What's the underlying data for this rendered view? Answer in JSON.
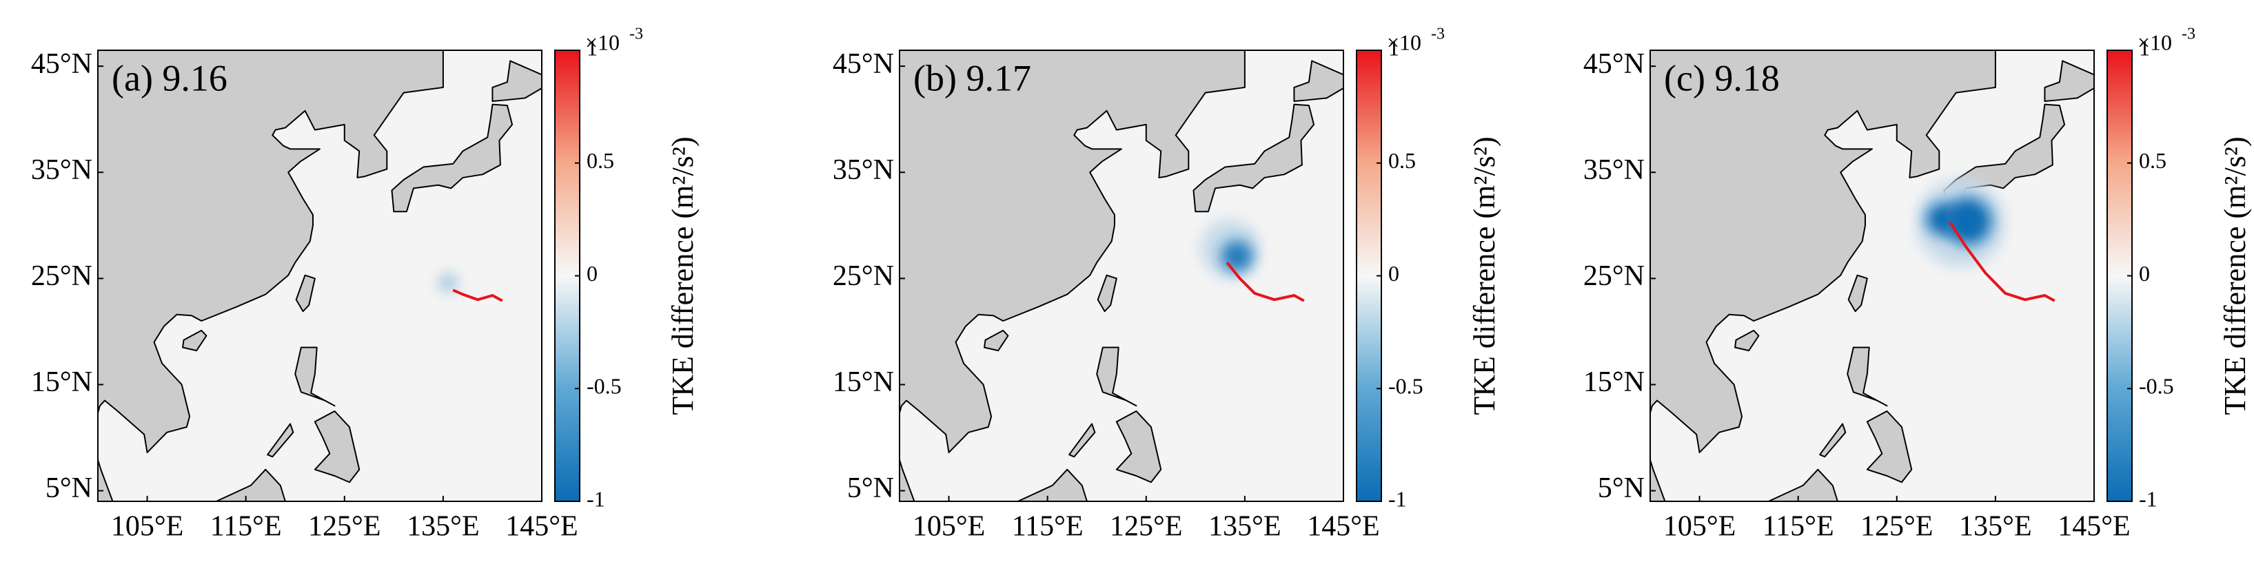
{
  "chart_data": [
    {
      "type": "map",
      "title": "(a) 9.16",
      "xlim": [
        100,
        145
      ],
      "ylim": [
        4,
        46.5
      ],
      "xticks": [
        {
          "value": 105,
          "label": "105°E"
        },
        {
          "value": 115,
          "label": "115°E"
        },
        {
          "value": 125,
          "label": "125°E"
        },
        {
          "value": 135,
          "label": "135°E"
        },
        {
          "value": 145,
          "label": "145°E"
        }
      ],
      "yticks": [
        {
          "value": 5,
          "label": "5°N"
        },
        {
          "value": 15,
          "label": "15°N"
        },
        {
          "value": 25,
          "label": "25°N"
        },
        {
          "value": 35,
          "label": "35°N"
        },
        {
          "value": 45,
          "label": "45°N"
        }
      ],
      "track": {
        "color": "#e8141c",
        "lon": [
          141,
          140,
          138.5,
          137,
          136
        ],
        "lat": [
          22.9,
          23.4,
          23.0,
          23.5,
          23.9
        ]
      },
      "anomalies": [
        {
          "lon": 135.5,
          "lat": 24.6,
          "radius": 0.9,
          "value": -0.4
        }
      ],
      "colorbar": {
        "label": "TKE difference (m²/s²)",
        "base": "×10",
        "exponent": "-3",
        "lim": [
          -1,
          1
        ],
        "ticks": [
          -1,
          -0.5,
          0,
          0.5,
          1
        ]
      }
    },
    {
      "type": "map",
      "title": "(b) 9.17",
      "xlim": [
        100,
        145
      ],
      "ylim": [
        4,
        46.5
      ],
      "xticks": [
        {
          "value": 105,
          "label": "105°E"
        },
        {
          "value": 115,
          "label": "115°E"
        },
        {
          "value": 125,
          "label": "125°E"
        },
        {
          "value": 135,
          "label": "135°E"
        },
        {
          "value": 145,
          "label": "145°E"
        }
      ],
      "yticks": [
        {
          "value": 5,
          "label": "5°N"
        },
        {
          "value": 15,
          "label": "15°N"
        },
        {
          "value": 25,
          "label": "25°N"
        },
        {
          "value": 35,
          "label": "35°N"
        },
        {
          "value": 45,
          "label": "45°N"
        }
      ],
      "track": {
        "color": "#e8141c",
        "lon": [
          141,
          140,
          138,
          136,
          134.5,
          133.2
        ],
        "lat": [
          22.9,
          23.4,
          23.0,
          23.6,
          25,
          26.5
        ]
      },
      "anomalies": [
        {
          "lon": 133.5,
          "lat": 27.8,
          "radius": 3,
          "value": -0.2
        },
        {
          "lon": 134.2,
          "lat": 27.1,
          "radius": 1.6,
          "value": -0.9
        }
      ],
      "colorbar": {
        "label": "TKE difference (m²/s²)",
        "base": "×10",
        "exponent": "-3",
        "lim": [
          -1,
          1
        ],
        "ticks": [
          -1,
          -0.5,
          0,
          0.5,
          1
        ]
      }
    },
    {
      "type": "map",
      "title": "(c) 9.18",
      "xlim": [
        100,
        145
      ],
      "ylim": [
        4,
        46.5
      ],
      "xticks": [
        {
          "value": 105,
          "label": "105°E"
        },
        {
          "value": 115,
          "label": "115°E"
        },
        {
          "value": 125,
          "label": "125°E"
        },
        {
          "value": 135,
          "label": "135°E"
        },
        {
          "value": 145,
          "label": "145°E"
        }
      ],
      "yticks": [
        {
          "value": 5,
          "label": "5°N"
        },
        {
          "value": 15,
          "label": "15°N"
        },
        {
          "value": 25,
          "label": "25°N"
        },
        {
          "value": 35,
          "label": "35°N"
        },
        {
          "value": 45,
          "label": "45°N"
        }
      ],
      "track": {
        "color": "#e8141c",
        "lon": [
          141,
          140,
          138,
          136,
          134,
          132,
          130.4
        ],
        "lat": [
          22.9,
          23.4,
          23.0,
          23.6,
          25.5,
          28,
          30.3
        ]
      },
      "anomalies": [
        {
          "lon": 131.5,
          "lat": 30.2,
          "radius": 4.5,
          "value": -0.2
        },
        {
          "lon": 129.6,
          "lat": 30.6,
          "radius": 1.6,
          "value": -1
        },
        {
          "lon": 132.2,
          "lat": 30.4,
          "radius": 2.4,
          "value": -1
        }
      ],
      "colorbar": {
        "label": "TKE difference (m²/s²)",
        "base": "×10",
        "exponent": "-3",
        "lim": [
          -1,
          1
        ],
        "ticks": [
          -1,
          -0.5,
          0,
          0.5,
          1
        ]
      }
    }
  ]
}
